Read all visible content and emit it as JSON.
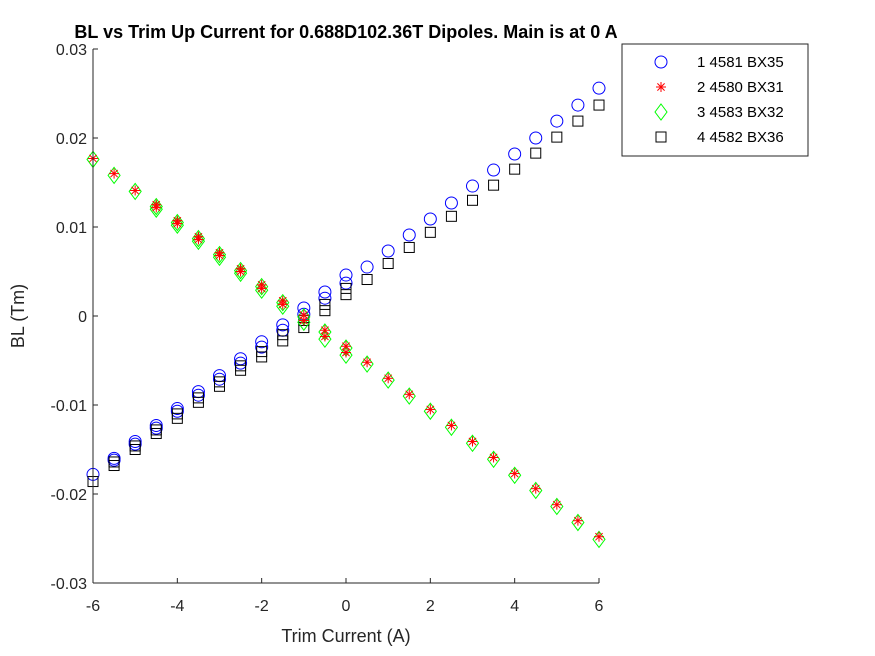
{
  "chart_data": {
    "type": "scatter",
    "title": "BL vs Trim Up Current for 0.688D102.36T Dipoles.  Main is at 0 A",
    "xlabel": "Trim Current (A)",
    "ylabel": "BL (Tm)",
    "xlim": [
      -6,
      6
    ],
    "ylim": [
      -0.03,
      0.03
    ],
    "x_ticks": [
      -6,
      -4,
      -2,
      0,
      2,
      4,
      6
    ],
    "y_ticks": [
      -0.03,
      -0.02,
      -0.01,
      0,
      0.01,
      0.02,
      0.03
    ],
    "x_tick_labels": [
      "-6",
      "-4",
      "-2",
      "0",
      "2",
      "4",
      "6"
    ],
    "y_tick_labels": [
      "-0.03",
      "-0.02",
      "-0.01",
      "0",
      "0.01",
      "0.02",
      "0.03"
    ],
    "grid": false,
    "legend_position": "outside-right-top",
    "series": [
      {
        "name": "1 4581 BX35",
        "marker": "circle",
        "color": "#0000ff",
        "points": [
          [
            -6,
            -0.0178
          ],
          [
            -5.5,
            -0.016
          ],
          [
            -5.5,
            -0.0162
          ],
          [
            -5,
            -0.0141
          ],
          [
            -5,
            -0.0144
          ],
          [
            -4.5,
            -0.0123
          ],
          [
            -4.5,
            -0.0126
          ],
          [
            -4,
            -0.0104
          ],
          [
            -4,
            -0.0107
          ],
          [
            -3.5,
            -0.0085
          ],
          [
            -3.5,
            -0.0089
          ],
          [
            -3,
            -0.0067
          ],
          [
            -3,
            -0.0071
          ],
          [
            -2.5,
            -0.0048
          ],
          [
            -2.5,
            -0.0053
          ],
          [
            -2,
            -0.0029
          ],
          [
            -2,
            -0.0035
          ],
          [
            -1.5,
            -0.001
          ],
          [
            -1.5,
            -0.0016
          ],
          [
            -1,
            0.0009
          ],
          [
            -1,
            0.0002
          ],
          [
            -0.5,
            0.0027
          ],
          [
            -0.5,
            0.002
          ],
          [
            0,
            0.0046
          ],
          [
            0,
            0.0037
          ],
          [
            0.5,
            0.0055
          ],
          [
            1,
            0.0073
          ],
          [
            1.5,
            0.0091
          ],
          [
            2,
            0.0109
          ],
          [
            2.5,
            0.0127
          ],
          [
            3,
            0.0146
          ],
          [
            3.5,
            0.0164
          ],
          [
            4,
            0.0182
          ],
          [
            4.5,
            0.02
          ],
          [
            5,
            0.0219
          ],
          [
            5.5,
            0.0237
          ],
          [
            6,
            0.0256
          ]
        ]
      },
      {
        "name": "2 4580 BX31",
        "marker": "asterisk",
        "color": "#ff0000",
        "points": [
          [
            -6,
            0.0177
          ],
          [
            -5.5,
            0.016
          ],
          [
            -5,
            0.0141
          ],
          [
            -4.5,
            0.0125
          ],
          [
            -4.5,
            0.0122
          ],
          [
            -4,
            0.0107
          ],
          [
            -4,
            0.0104
          ],
          [
            -3.5,
            0.0089
          ],
          [
            -3.5,
            0.0086
          ],
          [
            -3,
            0.0071
          ],
          [
            -3,
            0.0068
          ],
          [
            -2.5,
            0.0053
          ],
          [
            -2.5,
            0.005
          ],
          [
            -2,
            0.0035
          ],
          [
            -2,
            0.0031
          ],
          [
            -1.5,
            0.0017
          ],
          [
            -1.5,
            0.0013
          ],
          [
            -1,
            0.0001
          ],
          [
            -1,
            -0.0005
          ],
          [
            -0.5,
            -0.0016
          ],
          [
            -0.5,
            -0.0023
          ],
          [
            0,
            -0.0034
          ],
          [
            0,
            -0.0041
          ],
          [
            0.5,
            -0.0052
          ],
          [
            1,
            -0.007
          ],
          [
            1.5,
            -0.0088
          ],
          [
            2,
            -0.0105
          ],
          [
            2.5,
            -0.0123
          ],
          [
            3,
            -0.0141
          ],
          [
            3.5,
            -0.0159
          ],
          [
            4,
            -0.0177
          ],
          [
            4.5,
            -0.0194
          ],
          [
            5,
            -0.0212
          ],
          [
            5.5,
            -0.023
          ],
          [
            6,
            -0.0248
          ]
        ]
      },
      {
        "name": "3 4583 BX32",
        "marker": "diamond",
        "color": "#00ff00",
        "points": [
          [
            -6,
            0.0176
          ],
          [
            -5.5,
            0.0158
          ],
          [
            -5,
            0.014
          ],
          [
            -4.5,
            0.0123
          ],
          [
            -4.5,
            0.012
          ],
          [
            -4,
            0.0105
          ],
          [
            -4,
            0.0102
          ],
          [
            -3.5,
            0.0087
          ],
          [
            -3.5,
            0.0084
          ],
          [
            -3,
            0.0069
          ],
          [
            -3,
            0.0066
          ],
          [
            -2.5,
            0.0051
          ],
          [
            -2.5,
            0.0048
          ],
          [
            -2,
            0.0033
          ],
          [
            -2,
            0.0029
          ],
          [
            -1.5,
            0.0015
          ],
          [
            -1.5,
            0.0011
          ],
          [
            -1,
            -0.0001
          ],
          [
            -1,
            -0.0007
          ],
          [
            -0.5,
            -0.0018
          ],
          [
            -0.5,
            -0.0026
          ],
          [
            0,
            -0.0036
          ],
          [
            0,
            -0.0044
          ],
          [
            0.5,
            -0.0054
          ],
          [
            1,
            -0.0072
          ],
          [
            1.5,
            -0.009
          ],
          [
            2,
            -0.0107
          ],
          [
            2.5,
            -0.0125
          ],
          [
            3,
            -0.0143
          ],
          [
            3.5,
            -0.0161
          ],
          [
            4,
            -0.0179
          ],
          [
            4.5,
            -0.0196
          ],
          [
            5,
            -0.0214
          ],
          [
            5.5,
            -0.0232
          ],
          [
            6,
            -0.0251
          ]
        ]
      },
      {
        "name": "4 4582 BX36",
        "marker": "square",
        "color": "#000000",
        "points": [
          [
            -6,
            -0.0186
          ],
          [
            -5.5,
            -0.0168
          ],
          [
            -5.5,
            -0.0164
          ],
          [
            -5,
            -0.015
          ],
          [
            -5,
            -0.0146
          ],
          [
            -4.5,
            -0.0132
          ],
          [
            -4.5,
            -0.0128
          ],
          [
            -4,
            -0.0115
          ],
          [
            -4,
            -0.011
          ],
          [
            -3.5,
            -0.0097
          ],
          [
            -3.5,
            -0.0092
          ],
          [
            -3,
            -0.0079
          ],
          [
            -3,
            -0.0074
          ],
          [
            -2.5,
            -0.0061
          ],
          [
            -2.5,
            -0.0056
          ],
          [
            -2,
            -0.0046
          ],
          [
            -2,
            -0.004
          ],
          [
            -1.5,
            -0.0028
          ],
          [
            -1.5,
            -0.0021
          ],
          [
            -1,
            -0.0013
          ],
          [
            -1,
            -0.0005
          ],
          [
            -0.5,
            0.0006
          ],
          [
            -0.5,
            0.0013
          ],
          [
            0,
            0.0024
          ],
          [
            0,
            0.0031
          ],
          [
            0.5,
            0.0041
          ],
          [
            1,
            0.0059
          ],
          [
            1.5,
            0.0077
          ],
          [
            2,
            0.0094
          ],
          [
            2.5,
            0.0112
          ],
          [
            3,
            0.013
          ],
          [
            3.5,
            0.0147
          ],
          [
            4,
            0.0165
          ],
          [
            4.5,
            0.0183
          ],
          [
            5,
            0.0201
          ],
          [
            5.5,
            0.0219
          ],
          [
            6,
            0.0237
          ]
        ]
      }
    ]
  }
}
